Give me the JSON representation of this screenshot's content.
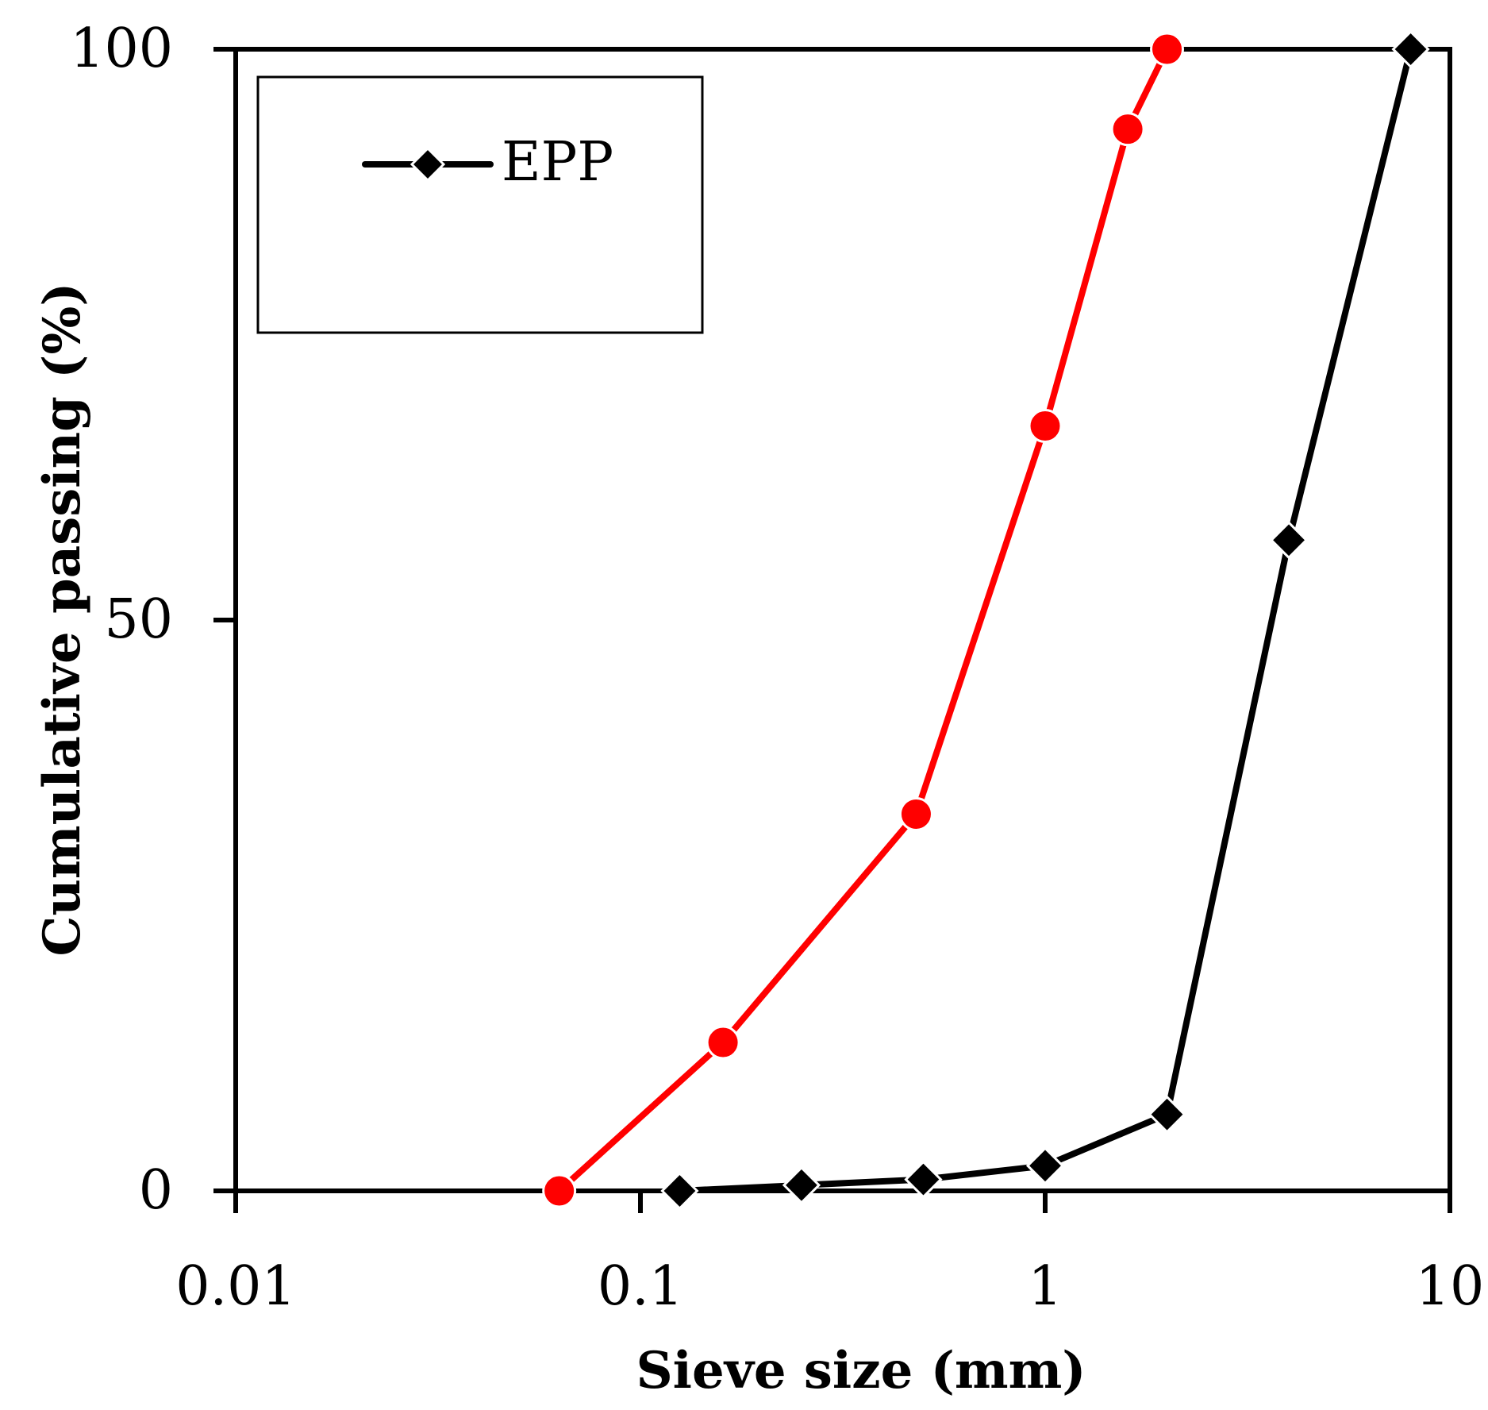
{
  "chart_data": {
    "type": "line",
    "x_scale": "log",
    "xlabel": "Sieve size (mm)",
    "ylabel": "Cumulative passing (%)",
    "xlim": [
      0.01,
      10
    ],
    "ylim": [
      0,
      100
    ],
    "x_ticks": [
      {
        "value": 0.01,
        "label": "0.01"
      },
      {
        "value": 0.1,
        "label": "0.1"
      },
      {
        "value": 1,
        "label": "1"
      },
      {
        "value": 10,
        "label": "10"
      }
    ],
    "y_ticks": [
      {
        "value": 0,
        "label": "0"
      },
      {
        "value": 50,
        "label": "50"
      },
      {
        "value": 100,
        "label": "100"
      }
    ],
    "legend": {
      "position": "top-left",
      "entries": [
        "EPP"
      ]
    },
    "series": [
      {
        "name": "EPP",
        "color": "#000000",
        "marker": "diamond",
        "x": [
          0.125,
          0.25,
          0.5,
          1,
          2,
          4,
          8
        ],
        "y": [
          0,
          0.5,
          1,
          2.2,
          6.7,
          57,
          100
        ]
      },
      {
        "name": "",
        "color": "#ff0000",
        "marker": "circle",
        "x": [
          0.063,
          0.16,
          0.48,
          1,
          1.6,
          2
        ],
        "y": [
          0,
          13,
          33,
          67,
          93,
          100
        ]
      }
    ]
  }
}
